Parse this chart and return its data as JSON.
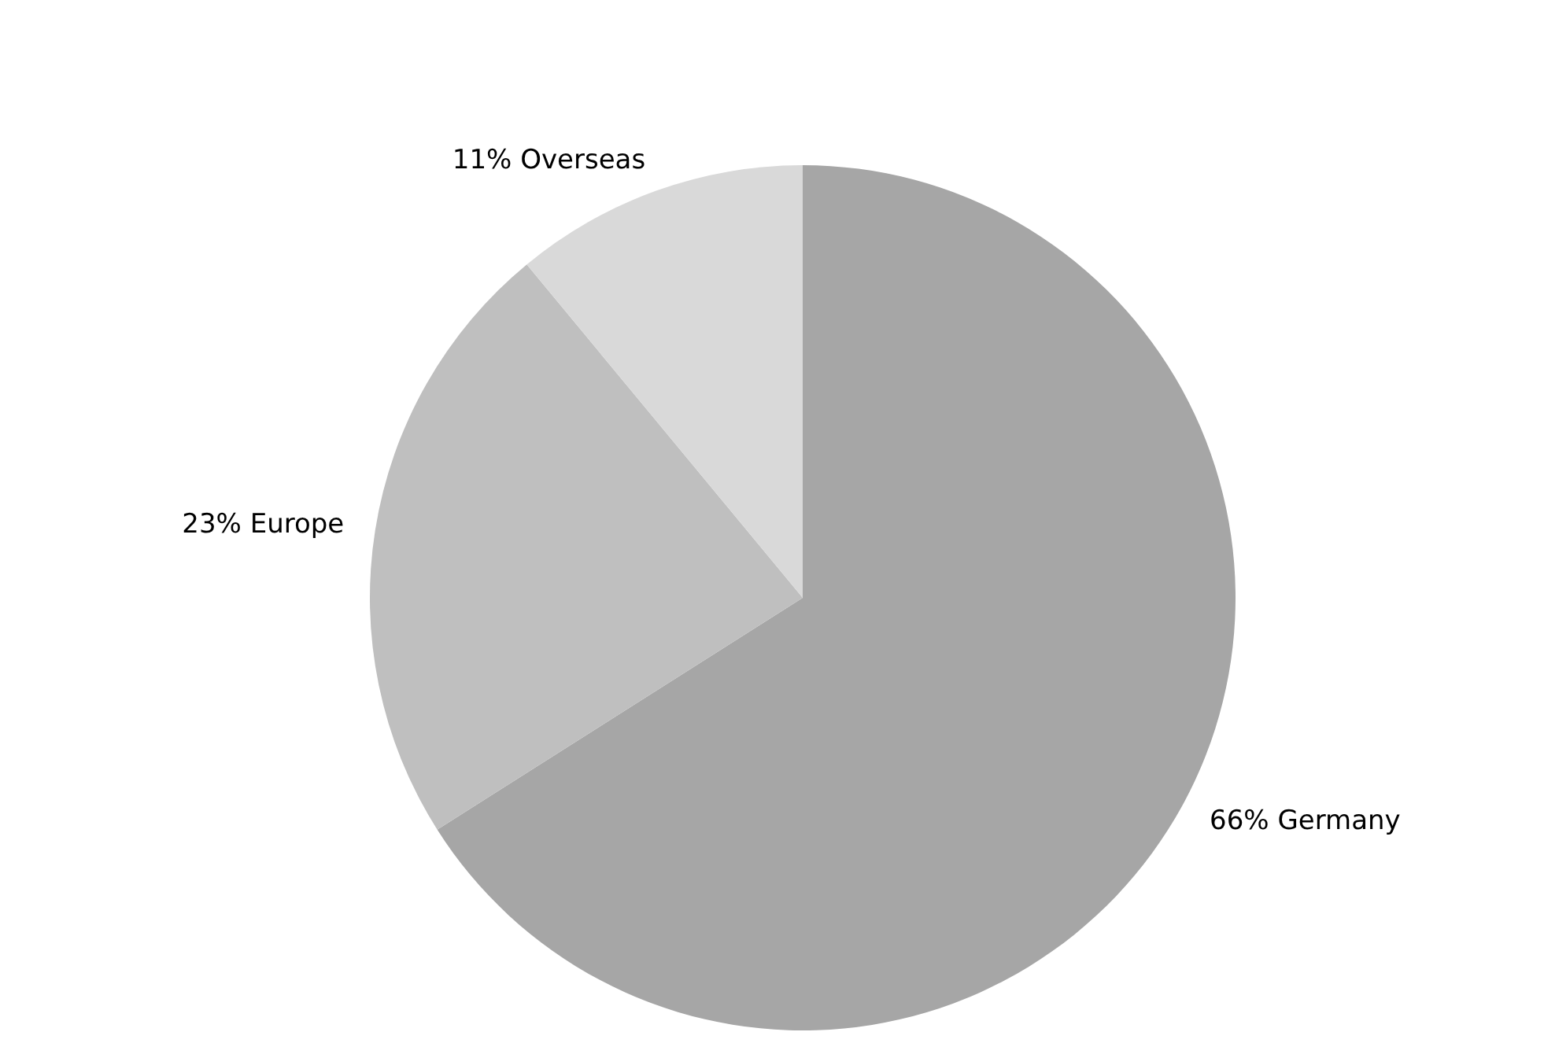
{
  "chart_data": {
    "type": "pie",
    "categories": [
      "Germany",
      "Europe",
      "Overseas"
    ],
    "values": [
      66,
      23,
      11
    ],
    "value_labels": [
      "66%",
      "23%",
      "11%"
    ],
    "colors": [
      "#a6a6a6",
      "#bfbfbf",
      "#d9d9d9"
    ]
  }
}
